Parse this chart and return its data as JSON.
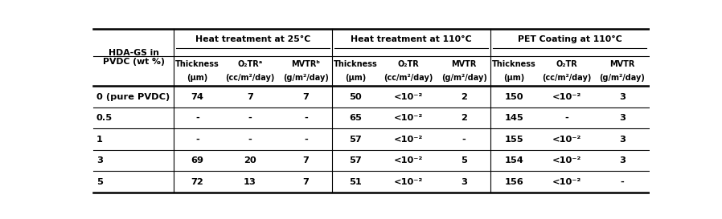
{
  "group_labels": [
    "Heat treatment at 25°C",
    "Heat treatment at 110°C",
    "PET Coating at 110°C"
  ],
  "col_header_line1": [
    "Thickness",
    "O₂TRᵃ",
    "MVTRᵇ",
    "Thickness",
    "O₂TR",
    "MVTR",
    "Thickness",
    "O₂TR",
    "MVTR"
  ],
  "col_header_line2": [
    "(μm)",
    "(cc/m²/day)",
    "(g/m²/day)",
    "(μm)",
    "(cc/m²/day)",
    "(g/m²/day)",
    "(μm)",
    "(cc/m²/day)",
    "(g/m²/day)"
  ],
  "hda_label": "HDA-GS in\nPVDC (wt %)",
  "rows": [
    [
      "0 (pure PVDC)",
      "74",
      "7",
      "7",
      "50",
      "<10⁻²",
      "2",
      "150",
      "<10⁻²",
      "3"
    ],
    [
      "0.5",
      "-",
      "-",
      "-",
      "65",
      "<10⁻²",
      "2",
      "145",
      "-",
      "3"
    ],
    [
      "1",
      "-",
      "-",
      "-",
      "57",
      "<10⁻²",
      "-",
      "155",
      "<10⁻²",
      "3"
    ],
    [
      "3",
      "69",
      "20",
      "7",
      "57",
      "<10⁻²",
      "5",
      "154",
      "<10⁻²",
      "3"
    ],
    [
      "5",
      "72",
      "13",
      "7",
      "51",
      "<10⁻²",
      "3",
      "156",
      "<10⁻²",
      "-"
    ]
  ],
  "background_color": "#ffffff",
  "lw_thick": 1.8,
  "lw_thin": 0.8,
  "font_size_group": 7.8,
  "font_size_colhdr": 7.0,
  "font_size_data": 8.2
}
